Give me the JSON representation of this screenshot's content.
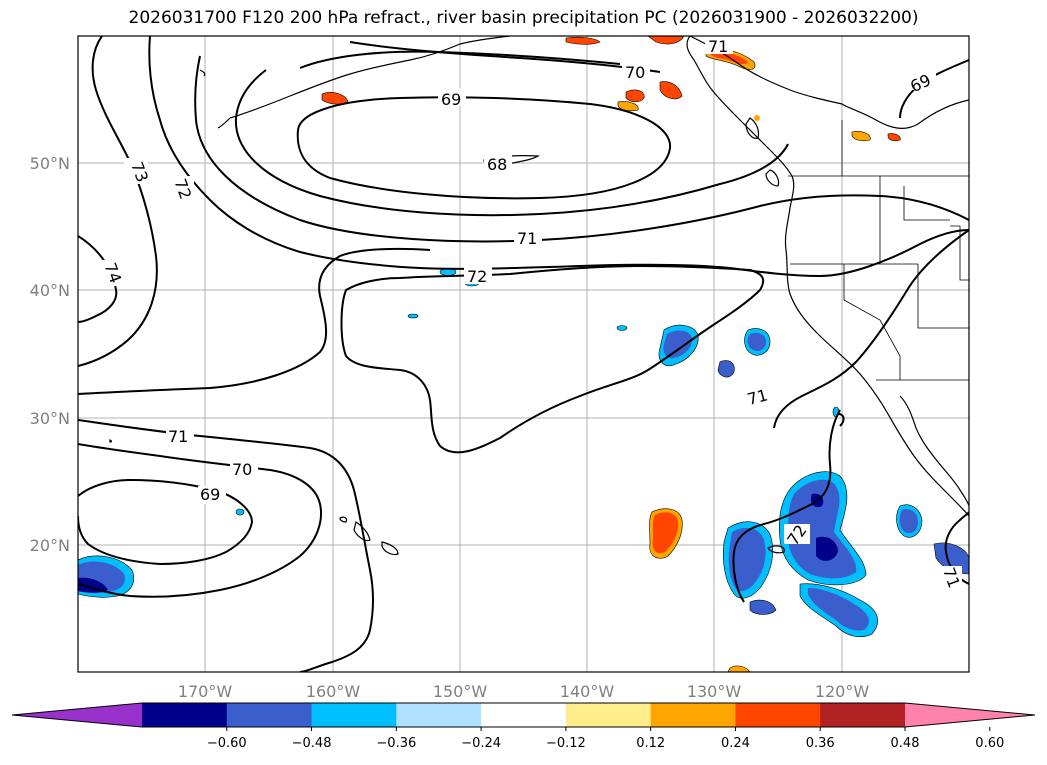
{
  "title": "2026031700 F120 200 hPa refract., river basin precipitation PC (2026031900 - 2026032200)",
  "lat_labels": [
    "50°N",
    "40°N",
    "30°N",
    "20°N"
  ],
  "lon_labels": [
    "170°W",
    "160°W",
    "150°W",
    "140°W",
    "130°W",
    "120°W"
  ],
  "contour_labels": [
    "71",
    "70",
    "69",
    "68",
    "71",
    "72",
    "73",
    "72",
    "74",
    "71",
    "70",
    "69",
    "71",
    "72",
    "71",
    "69"
  ],
  "colorbar": {
    "colors": [
      "#9932cc",
      "#00008b",
      "#3a5fcd",
      "#00bfff",
      "#b0e2ff",
      "#ffffff",
      "#ffec8b",
      "#ffa500",
      "#ff4500",
      "#b22222",
      "#ff82ab"
    ],
    "tick_labels": [
      "−0.60",
      "−0.48",
      "−0.36",
      "−0.24",
      "−0.12",
      "0.12",
      "0.24",
      "0.36",
      "0.48",
      "0.60"
    ]
  }
}
